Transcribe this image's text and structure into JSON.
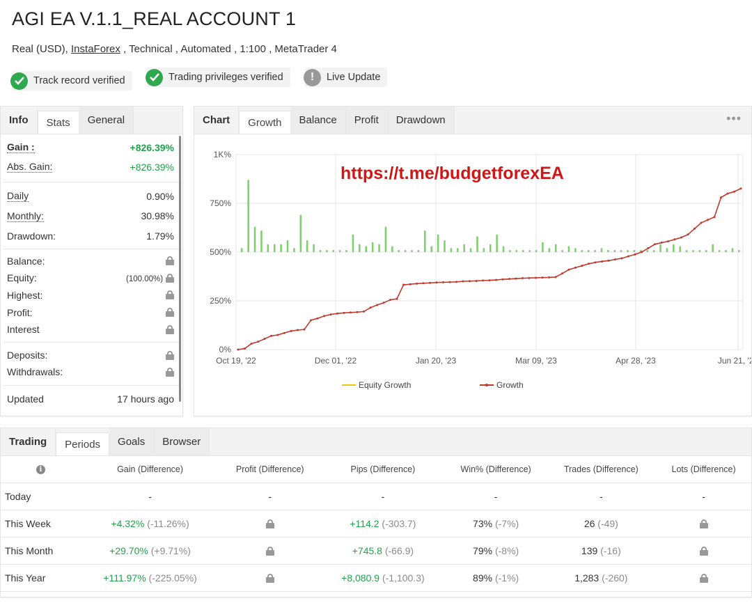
{
  "header": {
    "title": "AGI EA V.1.1_REAL ACCOUNT 1",
    "subtitle_pre": "Real (USD), ",
    "subtitle_link": "InstaForex",
    "subtitle_post": " , Technical , Automated , 1:100 , MetaTrader 4"
  },
  "badges": [
    {
      "label": "Track record verified",
      "icon": "check-icon"
    },
    {
      "label": "Trading privileges verified",
      "icon": "check-icon"
    },
    {
      "label": "Live Update",
      "icon": "exclamation-icon"
    }
  ],
  "left_panel": {
    "tabs": [
      "Info",
      "Stats",
      "General"
    ],
    "rows": {
      "gain": {
        "label": "Gain :",
        "value": "+826.39%"
      },
      "abs_gain": {
        "label": "Abs. Gain:",
        "value": "+826.39%"
      },
      "daily": {
        "label": "Daily",
        "value": "0.90%"
      },
      "monthly": {
        "label": "Monthly:",
        "value": "30.98%"
      },
      "drawdown": {
        "label": "Drawdown:",
        "value": "1.79%"
      },
      "balance": {
        "label": "Balance:"
      },
      "equity": {
        "label": "Equity:",
        "value": "(100.00%)"
      },
      "highest": {
        "label": "Highest:"
      },
      "profit": {
        "label": "Profit:"
      },
      "interest": {
        "label": "Interest"
      },
      "deposits": {
        "label": "Deposits:"
      },
      "withdrawals": {
        "label": "Withdrawals:"
      },
      "updated": {
        "label": "Updated",
        "value": "17 hours ago"
      }
    }
  },
  "chart_panel": {
    "tabs": [
      "Chart",
      "Growth",
      "Balance",
      "Profit",
      "Drawdown"
    ],
    "more": "•••"
  },
  "chart_data": {
    "type": "line",
    "watermark": "https://t.me/budgetforexEA",
    "yticks": [
      "0%",
      "250%",
      "500%",
      "750%",
      "1K%"
    ],
    "ylim": [
      0,
      1000
    ],
    "xticks": [
      "Oct 19, '22",
      "Dec 01, '22",
      "Jan 20, '23",
      "Mar 09, '23",
      "Apr 28, '23",
      "Jun 21, '23"
    ],
    "legend": [
      "Equity Growth",
      "Growth"
    ],
    "colors": {
      "growth": "#c0392b",
      "equity": "#f1c40f",
      "bars": "#7ccf6a"
    },
    "growth_series": [
      0,
      5,
      30,
      40,
      55,
      70,
      75,
      85,
      95,
      100,
      103,
      150,
      160,
      172,
      180,
      185,
      188,
      190,
      192,
      195,
      215,
      228,
      240,
      255,
      260,
      332,
      335,
      338,
      340,
      342,
      344,
      345,
      346,
      347,
      350,
      351,
      352,
      354,
      355,
      357,
      360,
      362,
      364,
      366,
      367,
      368,
      369,
      370,
      372,
      390,
      410,
      420,
      430,
      440,
      447,
      452,
      456,
      462,
      468,
      478,
      488,
      500,
      520,
      540,
      548,
      555,
      565,
      575,
      590,
      620,
      650,
      665,
      680,
      780,
      800,
      810,
      826
    ],
    "daily_bars": [
      20,
      370,
      130,
      110,
      40,
      40,
      40,
      60,
      20,
      190,
      60,
      40,
      10,
      10,
      10,
      10,
      10,
      90,
      40,
      30,
      50,
      40,
      130,
      30,
      10,
      10,
      10,
      10,
      110,
      30,
      90,
      60,
      20,
      20,
      40,
      20,
      80,
      20,
      40,
      90,
      30,
      10,
      10,
      10,
      10,
      10,
      50,
      20,
      40,
      10,
      30,
      20,
      10,
      10,
      10,
      20,
      10,
      10,
      10,
      10,
      10,
      10,
      10,
      10,
      40,
      20,
      40,
      30,
      10,
      10,
      10,
      10,
      40,
      10,
      10,
      20,
      10
    ]
  },
  "bottom_panel": {
    "tabs": [
      "Trading",
      "Periods",
      "Goals",
      "Browser"
    ],
    "columns": [
      "Gain (Difference)",
      "Profit (Difference)",
      "Pips (Difference)",
      "Win% (Difference)",
      "Trades (Difference)",
      "Lots (Difference)"
    ],
    "rows": [
      {
        "label": "Today",
        "gain": "-",
        "gain_diff": "",
        "profit": "-",
        "pips": "-",
        "pips_diff": "",
        "win": "-",
        "win_diff": "",
        "trades": "-",
        "trades_diff": "",
        "lots": "-"
      },
      {
        "label": "This Week",
        "gain": "+4.32%",
        "gain_diff": "(-11.26%)",
        "pips": "+114.2",
        "pips_diff": "(-303.7)",
        "win": "73%",
        "win_diff": "(-7%)",
        "trades": "26",
        "trades_diff": "(-49)"
      },
      {
        "label": "This Month",
        "gain": "+29.70%",
        "gain_diff": "(+9.71%)",
        "pips": "+745.8",
        "pips_diff": "(-66.9)",
        "win": "79%",
        "win_diff": "(-8%)",
        "trades": "139",
        "trades_diff": "(-16)"
      },
      {
        "label": "This Year",
        "gain": "+111.97%",
        "gain_diff": "(-225.05%)",
        "pips": "+8,080.9",
        "pips_diff": "(-1,100.3)",
        "win": "89%",
        "win_diff": "(-1%)",
        "trades": "1,283",
        "trades_diff": "(-260)"
      }
    ]
  }
}
